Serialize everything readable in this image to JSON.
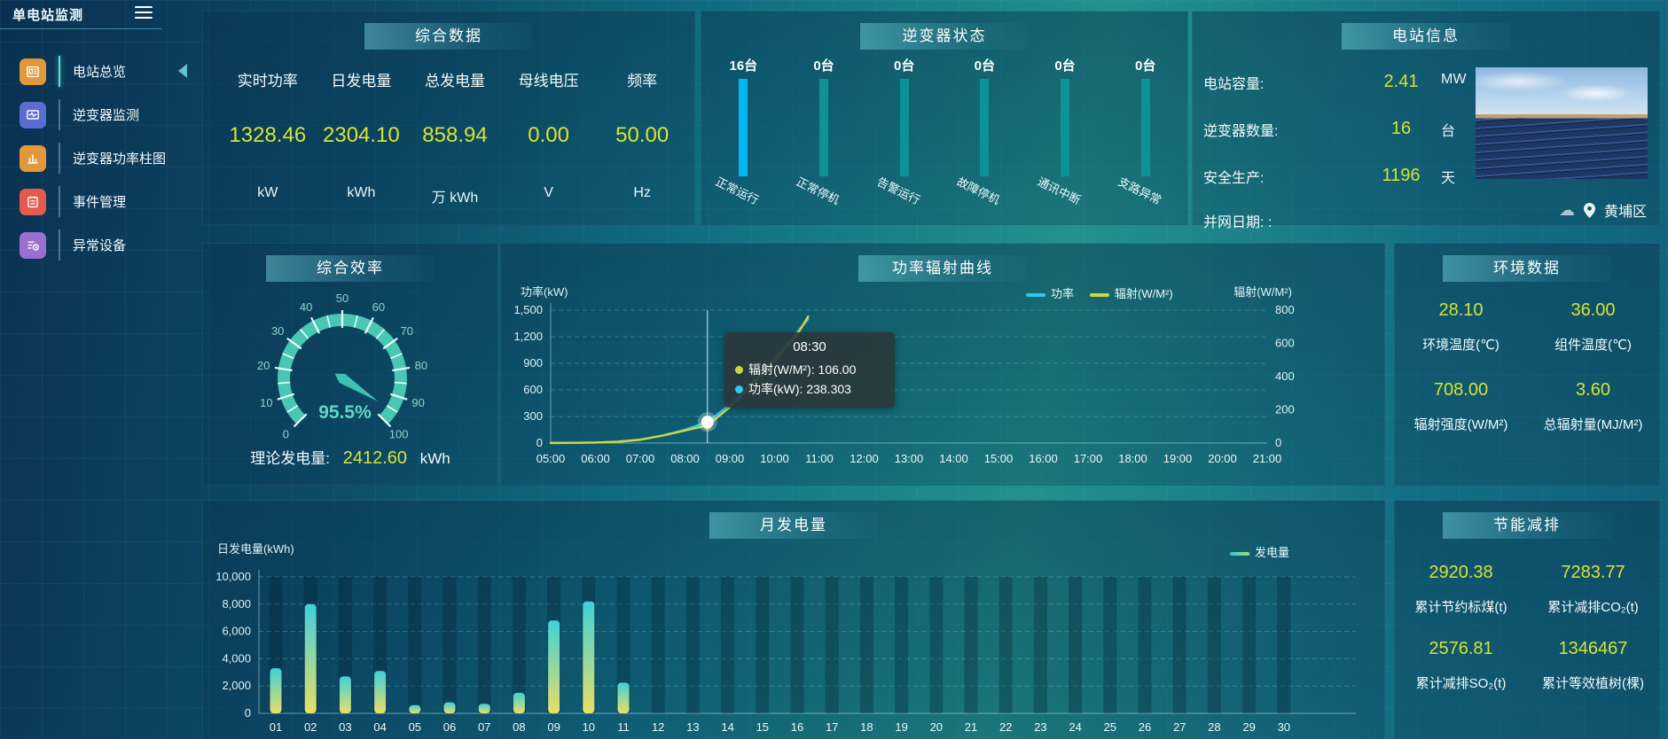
{
  "app": {
    "title": "单电站监测"
  },
  "sidebar": {
    "items": [
      {
        "label": "电站总览",
        "color": "#e2973a",
        "active": true
      },
      {
        "label": "逆变器监测",
        "color": "#5b6ed0",
        "active": false
      },
      {
        "label": "逆变器功率柱图",
        "color": "#e2973a",
        "active": false
      },
      {
        "label": "事件管理",
        "color": "#e55a4e",
        "active": false
      },
      {
        "label": "异常设备",
        "color": "#9a6fd0",
        "active": false
      }
    ]
  },
  "summary": {
    "title": "综合数据",
    "metrics": [
      {
        "label": "实时功率",
        "value": "1328.46",
        "unit": "kW"
      },
      {
        "label": "日发电量",
        "value": "2304.10",
        "unit": "kWh"
      },
      {
        "label": "总发电量",
        "value": "858.94",
        "unit": "万 kWh"
      },
      {
        "label": "母线电压",
        "value": "0.00",
        "unit": "V"
      },
      {
        "label": "频率",
        "value": "50.00",
        "unit": "Hz"
      }
    ]
  },
  "inverter_status": {
    "title": "逆变器状态",
    "bars": [
      {
        "count": "16台",
        "label": "正常运行",
        "color": "#00b7f2"
      },
      {
        "count": "0台",
        "label": "正常停机",
        "color": "#0d9396"
      },
      {
        "count": "0台",
        "label": "告警运行",
        "color": "#0d9396"
      },
      {
        "count": "0台",
        "label": "故障停机",
        "color": "#0d9396"
      },
      {
        "count": "0台",
        "label": "通讯中断",
        "color": "#0d9396"
      },
      {
        "count": "0台",
        "label": "支路异常",
        "color": "#0d9396"
      }
    ]
  },
  "station_info": {
    "title": "电站信息",
    "rows": [
      {
        "label": "电站容量:",
        "value": "2.41",
        "unit": "MW"
      },
      {
        "label": "逆变器数量:",
        "value": "16",
        "unit": "台"
      },
      {
        "label": "安全生产:",
        "value": "1196",
        "unit": "天"
      },
      {
        "label": "并网日期: :",
        "value": "",
        "unit": ""
      }
    ],
    "location": "黄埔区",
    "weather_icon": "☁"
  },
  "efficiency": {
    "title": "综合效率",
    "theory_label": "理论发电量:",
    "theory_value": "2412.60",
    "theory_unit": "kWh"
  },
  "power_curve": {
    "title": "功率辐射曲线",
    "tooltip": {
      "time": "08:30",
      "rows": [
        {
          "color": "#cdd63a",
          "text": "辐射(W/M²): 106.00"
        },
        {
          "color": "#2ec7f0",
          "text": "功率(kW): 238.303"
        }
      ]
    }
  },
  "environment": {
    "title": "环境数据",
    "metrics": [
      {
        "value": "28.10",
        "label": "环境温度(℃)"
      },
      {
        "value": "36.00",
        "label": "组件温度(℃)"
      },
      {
        "value": "708.00",
        "label": "辐射强度(W/M²)"
      },
      {
        "value": "3.60",
        "label": "总辐射量(MJ/M²)"
      }
    ]
  },
  "monthly": {
    "title": "月发电量"
  },
  "savings": {
    "title": "节能减排",
    "metrics": [
      {
        "value": "2920.38",
        "label": "累计节约标煤(t)"
      },
      {
        "value": "7283.77",
        "label": "累计减排CO₂(t)"
      },
      {
        "value": "2576.81",
        "label": "累计减排SO₂(t)"
      },
      {
        "value": "1346467",
        "label": "累计等效植树(棵)"
      }
    ]
  },
  "chart_data": [
    {
      "id": "efficiency_gauge",
      "type": "gauge",
      "title": "综合效率",
      "min": 0,
      "max": 100,
      "tick_step": 10,
      "value": 95.5,
      "label": "95.5%",
      "band_color": "#49c7b5",
      "tick_label_color": "#8fd4cd"
    },
    {
      "id": "power_radiation_curve",
      "type": "line",
      "title": "功率辐射曲线",
      "x_hours": [
        5,
        6,
        7,
        8,
        9,
        10,
        11,
        12,
        13,
        14,
        15,
        16,
        17,
        18,
        19,
        20,
        21
      ],
      "left_axis": {
        "title": "功率(kW)",
        "min": 0,
        "max": 1500,
        "step": 300
      },
      "right_axis": {
        "title": "辐射(W/M²)",
        "min": 0,
        "max": 800,
        "step": 200
      },
      "legend_position": "top-right-of-center",
      "grid": "dashed",
      "crosshair_x": 8.5,
      "marker": {
        "x": 8.5,
        "power": 238.303,
        "radiation": 106.0
      },
      "series": [
        {
          "name": "功率",
          "axis": "left",
          "color": "#2ec7f0",
          "points": [
            [
              5,
              2
            ],
            [
              5.5,
              3
            ],
            [
              6,
              6
            ],
            [
              6.5,
              14
            ],
            [
              7,
              38
            ],
            [
              7.5,
              85
            ],
            [
              8,
              150
            ],
            [
              8.5,
              238.3
            ],
            [
              9,
              430
            ],
            [
              9.5,
              690
            ],
            [
              10,
              960
            ],
            [
              10.5,
              1250
            ],
            [
              10.75,
              1400
            ]
          ]
        },
        {
          "name": "辐射(W/M²)",
          "axis": "right",
          "color": "#cdd63a",
          "points": [
            [
              5,
              0
            ],
            [
              5.5,
              1
            ],
            [
              6,
              3
            ],
            [
              6.5,
              8
            ],
            [
              7,
              20
            ],
            [
              7.5,
              45
            ],
            [
              8,
              75
            ],
            [
              8.5,
              106
            ],
            [
              9,
              215
            ],
            [
              9.5,
              350
            ],
            [
              10,
              495
            ],
            [
              10.5,
              650
            ],
            [
              10.75,
              762
            ]
          ]
        }
      ]
    },
    {
      "id": "monthly_generation",
      "type": "bar",
      "title": "月发电量",
      "ylabel": "日发电量(kWh)",
      "legend": "发电量",
      "ylim": [
        0,
        10000
      ],
      "step": 2000,
      "grid": "dashed",
      "categories": [
        "01",
        "02",
        "03",
        "04",
        "05",
        "06",
        "07",
        "08",
        "09",
        "10",
        "11",
        "12",
        "13",
        "14",
        "15",
        "16",
        "17",
        "18",
        "19",
        "20",
        "21",
        "22",
        "23",
        "24",
        "25",
        "26",
        "27",
        "28",
        "29",
        "30"
      ],
      "values": [
        3300,
        8000,
        2700,
        3100,
        600,
        800,
        700,
        1500,
        6800,
        8200,
        2250,
        0,
        0,
        0,
        0,
        0,
        0,
        0,
        0,
        0,
        0,
        0,
        0,
        0,
        0,
        0,
        0,
        0,
        0,
        0
      ]
    }
  ]
}
